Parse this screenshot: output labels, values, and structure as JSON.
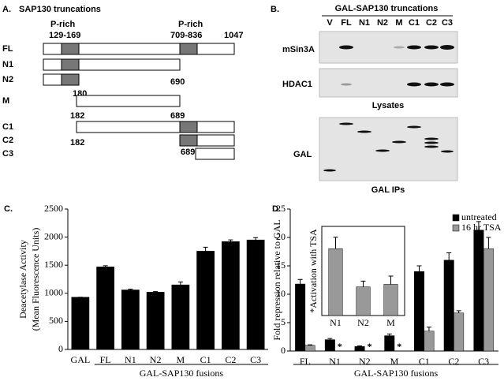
{
  "panel_a": {
    "label": "A.",
    "title": "SAP130 truncations",
    "p_rich_left": "P-rich",
    "p_rich_right": "P-rich",
    "range_left": "129-169",
    "range_right": "709-836",
    "length": "1047",
    "constructs": [
      "FL",
      "N1",
      "N2",
      "M",
      "C1",
      "C2",
      "C3"
    ],
    "end_labels": [
      "690",
      "180",
      "182",
      "689",
      "182",
      "689"
    ]
  },
  "panel_b": {
    "label": "B.",
    "title": "GAL-SAP130 truncations",
    "lanes": [
      "V",
      "FL",
      "N1",
      "N2",
      "M",
      "C1",
      "C2",
      "C3"
    ],
    "rows": [
      "mSin3A",
      "HDAC1",
      "GAL"
    ],
    "captions": [
      "Lysates",
      "GAL IPs"
    ]
  },
  "chart_data": [
    {
      "type": "bar",
      "panel_label": "C.",
      "y_label": [
        "Deacetylase Activity",
        "(Mean Fluorescence Units)"
      ],
      "x_label": "GAL-SAP130 fusions",
      "categories": [
        "GAL",
        "FL",
        "N1",
        "N2",
        "M",
        "C1",
        "C2",
        "C3"
      ],
      "values": [
        930,
        1470,
        1060,
        1020,
        1150,
        1750,
        1920,
        1950
      ],
      "errors": [
        0,
        20,
        15,
        10,
        50,
        70,
        30,
        40
      ],
      "color": "#000000",
      "ylim": [
        0,
        2500
      ],
      "yticks": [
        0,
        500,
        1000,
        1500,
        2000,
        2500
      ]
    },
    {
      "type": "bar",
      "panel_label": "D.",
      "y_label": "Fold repression relative to GAL",
      "x_label": "GAL-SAP130 fusions",
      "categories": [
        "FL",
        "N1",
        "N2",
        "M",
        "C1",
        "C2",
        "C3"
      ],
      "series": [
        {
          "name": "untreated",
          "color": "#000000",
          "values": [
            11.8,
            2.0,
            0.8,
            2.7,
            14.0,
            16.0,
            21.3
          ],
          "errors": [
            0.8,
            0.2,
            0.1,
            0.3,
            1.0,
            1.3,
            1.5
          ]
        },
        {
          "name": "16 hr TSA",
          "color": "#999999",
          "values": [
            1.0,
            null,
            null,
            null,
            3.5,
            6.7,
            18.0
          ],
          "errors": [
            0.1,
            null,
            null,
            null,
            0.7,
            0.4,
            2.0
          ]
        }
      ],
      "annotations": [
        {
          "text": "*",
          "category": "N1"
        },
        {
          "text": "*",
          "category": "N2"
        },
        {
          "text": "*",
          "category": "M"
        }
      ],
      "legend": "upper right",
      "ylim": [
        0,
        25
      ],
      "yticks": [
        0,
        5,
        10,
        15,
        20,
        25
      ]
    },
    {
      "type": "bar",
      "y_label": "*Activation with TSA",
      "categories": [
        "N1",
        "N2",
        "M"
      ],
      "values": [
        10.5,
        4.5,
        4.9
      ],
      "errors": [
        1.8,
        0.9,
        1.3
      ],
      "color": "#999999",
      "ylim": [
        0,
        14
      ]
    }
  ]
}
